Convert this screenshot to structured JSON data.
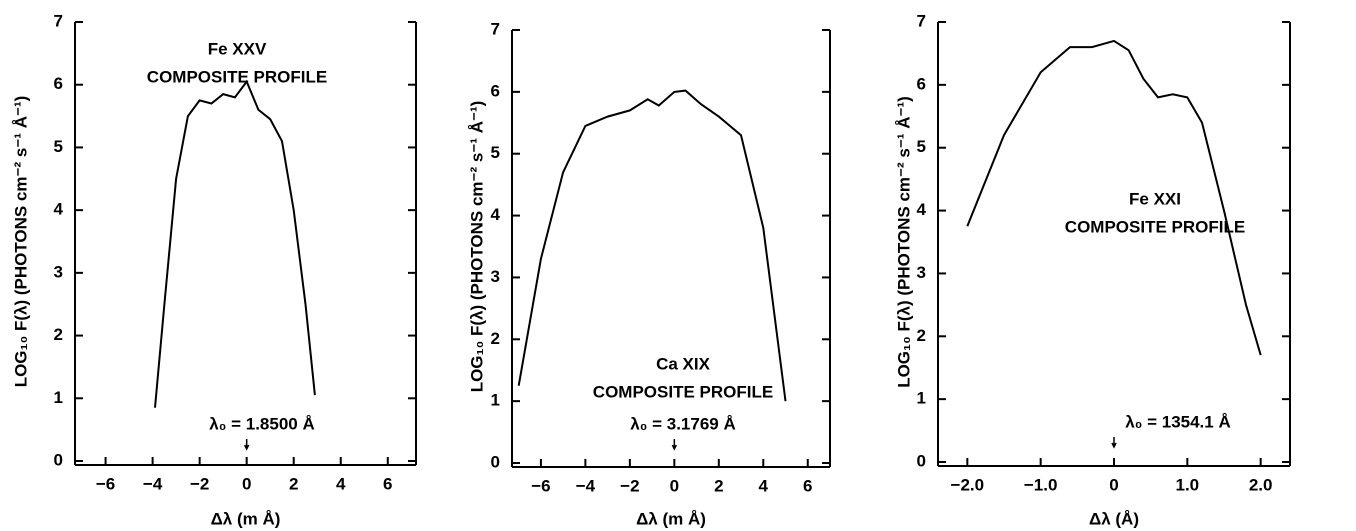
{
  "chart_data": [
    {
      "type": "line",
      "annotations": [
        "Fe XXV",
        "COMPOSITE PROFILE"
      ],
      "reference": "λ₀ = 1.8500 Å",
      "xlabel": "Δλ (m Å)",
      "ylabel": "LOG₁₀ F(λ) (PHOTONS cm⁻² s⁻¹ Å⁻¹)",
      "x": [
        -3.9,
        -3.5,
        -3,
        -2.5,
        -2,
        -1.5,
        -1,
        -0.5,
        0,
        0.5,
        1,
        1.5,
        2,
        2.5,
        2.9
      ],
      "series": [
        {
          "color": "#000000",
          "values": [
            0.85,
            2.5,
            4.5,
            5.5,
            5.75,
            5.7,
            5.85,
            5.8,
            6.05,
            5.6,
            5.45,
            5.1,
            4,
            2.5,
            1.05
          ]
        }
      ],
      "xlim": [
        -7.3,
        7.2
      ],
      "ylim": [
        0,
        7
      ],
      "xticks": [
        {
          "value": -6,
          "label": "−6"
        },
        {
          "value": -4,
          "label": "−4"
        },
        {
          "value": -2,
          "label": "−2"
        },
        0,
        2,
        4,
        6
      ],
      "yticks": [
        0,
        1,
        2,
        3,
        4,
        5,
        6,
        7
      ]
    },
    {
      "type": "line",
      "annotations": [
        "Ca XIX",
        "COMPOSITE PROFILE"
      ],
      "reference": "λ₀ = 3.1769 Å",
      "xlabel": "Δλ (m Å)",
      "ylabel": "LOG₁₀ F(λ) (PHOTONS cm⁻² s⁻¹ Å⁻¹)",
      "x": [
        -7,
        -6,
        -5,
        -4,
        -3,
        -2,
        -1.2,
        -0.7,
        0,
        0.5,
        1.2,
        2,
        2.5,
        3,
        4,
        5
      ],
      "series": [
        {
          "color": "#000000",
          "values": [
            1.25,
            3.3,
            4.7,
            5.45,
            5.6,
            5.7,
            5.88,
            5.78,
            6,
            6.02,
            5.8,
            5.6,
            5.45,
            5.3,
            3.8,
            1.0
          ]
        }
      ],
      "xlim": [
        -7.3,
        7
      ],
      "ylim": [
        0,
        7
      ],
      "xticks": [
        {
          "value": -6,
          "label": "−6"
        },
        {
          "value": -4,
          "label": "−4"
        },
        {
          "value": -2,
          "label": "−2"
        },
        0,
        2,
        4,
        6
      ],
      "yticks": [
        0,
        1,
        2,
        3,
        4,
        5,
        6,
        7
      ]
    },
    {
      "type": "line",
      "annotations": [
        "Fe XXI",
        "COMPOSITE PROFILE"
      ],
      "reference": "λ₀ = 1354.1 Å",
      "xlabel": "Δλ (Å)",
      "ylabel": "LOG₁₀ F(λ) (PHOTONS cm⁻² s⁻¹ Å⁻¹)",
      "x": [
        -2,
        -1.5,
        -1,
        -0.6,
        -0.3,
        0,
        0.2,
        0.4,
        0.6,
        0.8,
        1.0,
        1.2,
        1.5,
        1.8,
        2.0
      ],
      "series": [
        {
          "color": "#000000",
          "values": [
            3.75,
            5.2,
            6.2,
            6.6,
            6.6,
            6.7,
            6.55,
            6.1,
            5.8,
            5.85,
            5.8,
            5.4,
            4,
            2.5,
            1.7
          ]
        }
      ],
      "xlim": [
        -2.4,
        2.4
      ],
      "ylim": [
        0,
        7
      ],
      "xticks": [
        {
          "value": -2,
          "label": "−2.0"
        },
        {
          "value": -1,
          "label": "−1.0"
        },
        0,
        {
          "value": 1,
          "label": "1.0"
        },
        {
          "value": 2,
          "label": "2.0"
        }
      ],
      "yticks": [
        0,
        1,
        2,
        3,
        4,
        5,
        6,
        7
      ]
    }
  ]
}
